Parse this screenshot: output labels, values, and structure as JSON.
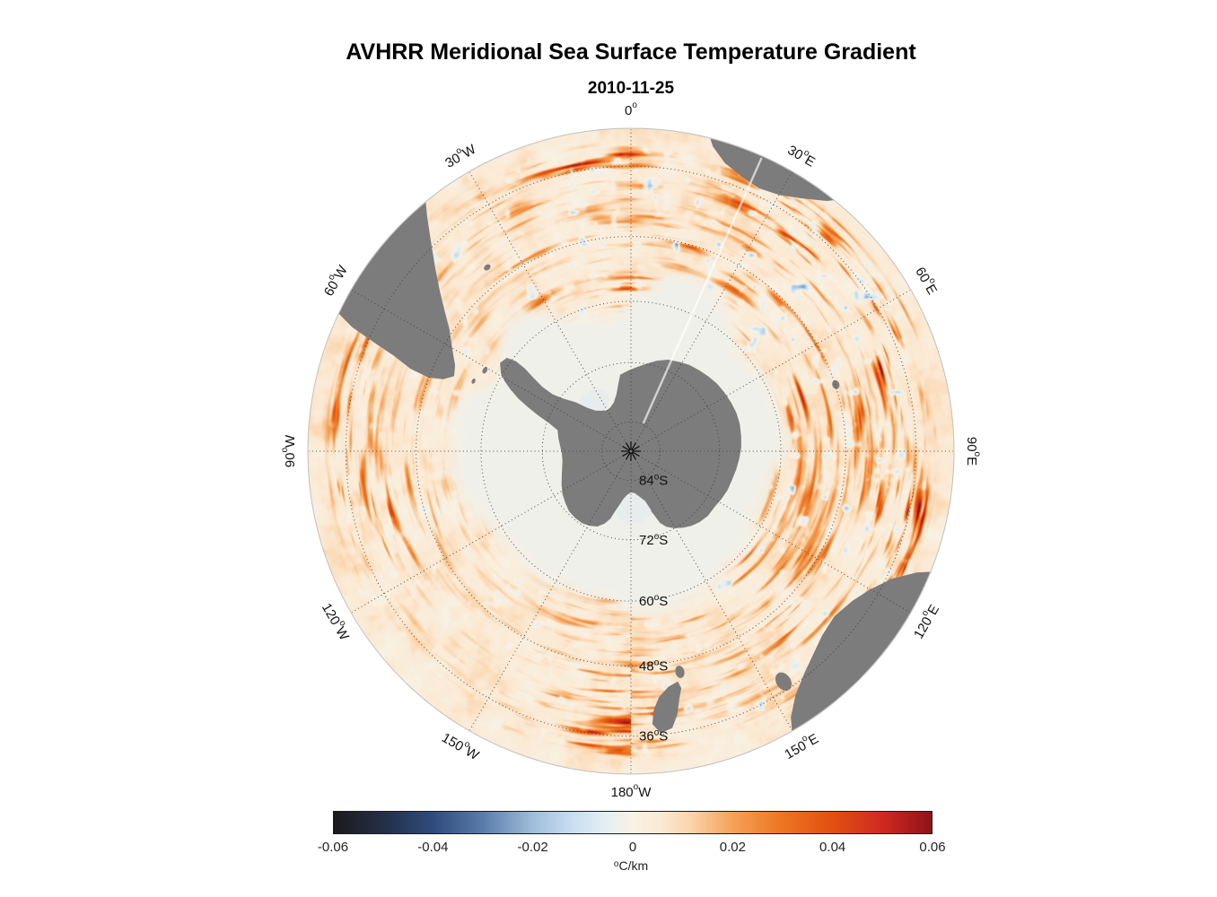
{
  "title": "AVHRR Meridional Sea Surface Temperature Gradient",
  "subtitle": "2010-11-25",
  "chart_data": {
    "type": "heatmap",
    "map_projection": "south polar stereographic",
    "title": "AVHRR Meridional Sea Surface Temperature Gradient",
    "date": "2010-11-25",
    "variable": "meridional sea surface temperature gradient",
    "units": "°C/km",
    "value_range": [
      -0.06,
      0.06
    ],
    "field_character": "thin positive (orange-red) SST-gradient filaments along the Antarctic Circumpolar Current belt between about 35S and 65S, near-zero cream background, sparse negative (dark blue) patches, pale gray sea-ice zone south of about 65S, gray land masses (Antarctica, tips of South America, Africa, Australia, New Zealand)",
    "colorbar": {
      "orientation": "horizontal",
      "ticks": [
        "-0.06",
        "-0.04",
        "-0.02",
        "0",
        "0.02",
        "0.04",
        "0.06"
      ],
      "tick_values": [
        -0.06,
        -0.04,
        -0.02,
        0,
        0.02,
        0.04,
        0.06
      ],
      "units_sup": "o",
      "units_text": "C/km",
      "stops": [
        {
          "v": -0.06,
          "c": "#1b1b1d"
        },
        {
          "v": -0.05,
          "c": "#242f47"
        },
        {
          "v": -0.04,
          "c": "#2f4c7d"
        },
        {
          "v": -0.03,
          "c": "#5a7cab"
        },
        {
          "v": -0.02,
          "c": "#9fbeda"
        },
        {
          "v": -0.012,
          "c": "#c9def0"
        },
        {
          "v": -0.005,
          "c": "#e6f0f3"
        },
        {
          "v": 0.0,
          "c": "#f8f2e4"
        },
        {
          "v": 0.006,
          "c": "#fbe9d3"
        },
        {
          "v": 0.012,
          "c": "#fad2a7"
        },
        {
          "v": 0.02,
          "c": "#f5a158"
        },
        {
          "v": 0.03,
          "c": "#ec7522"
        },
        {
          "v": 0.04,
          "c": "#e25012"
        },
        {
          "v": 0.05,
          "c": "#d02a20"
        },
        {
          "v": 0.06,
          "c": "#8e1219"
        }
      ]
    },
    "graticule": {
      "degree_mark": "o",
      "outer_latitude": -30,
      "meridian_step_deg": 30,
      "latitude_rings": [
        {
          "num": "84",
          "hem": "S",
          "lat": 84
        },
        {
          "num": "72",
          "hem": "S",
          "lat": 72
        },
        {
          "num": "60",
          "hem": "S",
          "lat": 60
        },
        {
          "num": "48",
          "hem": "S",
          "lat": 48
        },
        {
          "num": "36",
          "hem": "S",
          "lat": 36
        }
      ],
      "longitude_labels": [
        {
          "num": "0",
          "hem": "",
          "bearing": 0
        },
        {
          "num": "30",
          "hem": "E",
          "bearing": 30
        },
        {
          "num": "60",
          "hem": "E",
          "bearing": 60
        },
        {
          "num": "90",
          "hem": "E",
          "bearing": 90
        },
        {
          "num": "120",
          "hem": "E",
          "bearing": 120
        },
        {
          "num": "150",
          "hem": "E",
          "bearing": 150
        },
        {
          "num": "180",
          "hem": "W",
          "bearing": 180
        },
        {
          "num": "150",
          "hem": "W",
          "bearing": 210
        },
        {
          "num": "120",
          "hem": "W",
          "bearing": 240
        },
        {
          "num": "90",
          "hem": "W",
          "bearing": 270
        },
        {
          "num": "60",
          "hem": "W",
          "bearing": 300
        },
        {
          "num": "30",
          "hem": "W",
          "bearing": 330
        }
      ]
    },
    "colors": {
      "land": "#7c7c7c",
      "ice_shelf": "#e9ecec",
      "ice_zone": "#eef0ec",
      "background": "#ffffff",
      "graticule": "#3a3a3a",
      "frame": "#c0c0c0",
      "label": "#111111"
    }
  }
}
